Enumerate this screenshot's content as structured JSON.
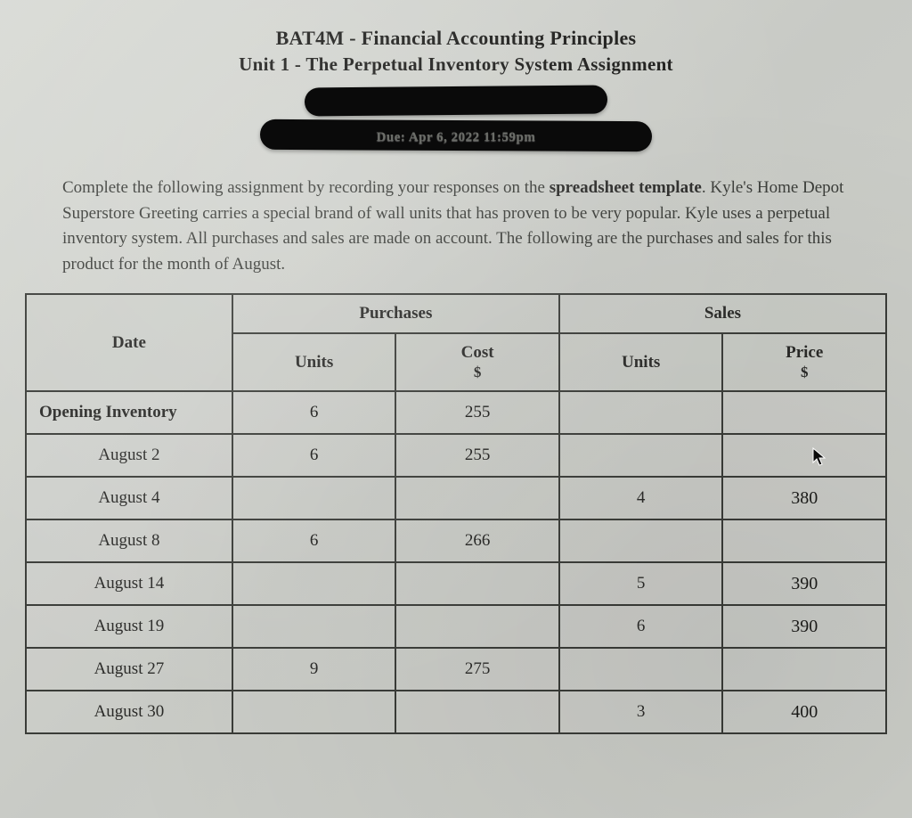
{
  "header": {
    "title_line_1": "BAT4M - Financial Accounting Principles",
    "title_line_2": "Unit 1 - The Perpetual Inventory System Assignment",
    "due_text_fragment": "Due: Apr 6, 2022 11:59pm"
  },
  "instructions": {
    "text_before_bold1": "Complete the following assignment by recording your responses on the ",
    "bold1": "spreadsheet template",
    "text_after_bold1": ". Kyle's Home Depot Superstore Greeting carries a special brand of wall units that has proven to be very popular. Kyle uses a perpetual inventory system. All purchases and sales are made on account. The following are the purchases and sales for this product for the month of August."
  },
  "table": {
    "headers": {
      "date": "Date",
      "purchases": "Purchases",
      "sales": "Sales",
      "units": "Units",
      "cost": "Cost",
      "price": "Price",
      "currency": "$"
    },
    "rows": [
      {
        "label": "Opening Inventory",
        "bold": true,
        "p_units": "6",
        "p_cost": "255",
        "s_units": "",
        "s_price": ""
      },
      {
        "label": "August 2",
        "bold": false,
        "p_units": "6",
        "p_cost": "255",
        "s_units": "",
        "s_price": ""
      },
      {
        "label": "August 4",
        "bold": false,
        "p_units": "",
        "p_cost": "",
        "s_units": "4",
        "s_price": "380"
      },
      {
        "label": "August 8",
        "bold": false,
        "p_units": "6",
        "p_cost": "266",
        "s_units": "",
        "s_price": ""
      },
      {
        "label": "August 14",
        "bold": false,
        "p_units": "",
        "p_cost": "",
        "s_units": "5",
        "s_price": "390"
      },
      {
        "label": "August 19",
        "bold": false,
        "p_units": "",
        "p_cost": "",
        "s_units": "6",
        "s_price": "390"
      },
      {
        "label": "August 27",
        "bold": false,
        "p_units": "9",
        "p_cost": "275",
        "s_units": "",
        "s_price": ""
      },
      {
        "label": "August 30",
        "bold": false,
        "p_units": "",
        "p_cost": "",
        "s_units": "3",
        "s_price": "400"
      }
    ]
  },
  "styling": {
    "page_bg_gradient_from": "#d8dad5",
    "page_bg_gradient_to": "#d0d2cc",
    "text_color": "#2a2a28",
    "border_color": "#3a3c38",
    "header_font_size": 22,
    "body_font_size": 19,
    "handwritten_font": "Comic Sans MS",
    "redaction_color": "#0a0a0a",
    "cursor_position": {
      "row": 1,
      "col": "s_price"
    }
  }
}
